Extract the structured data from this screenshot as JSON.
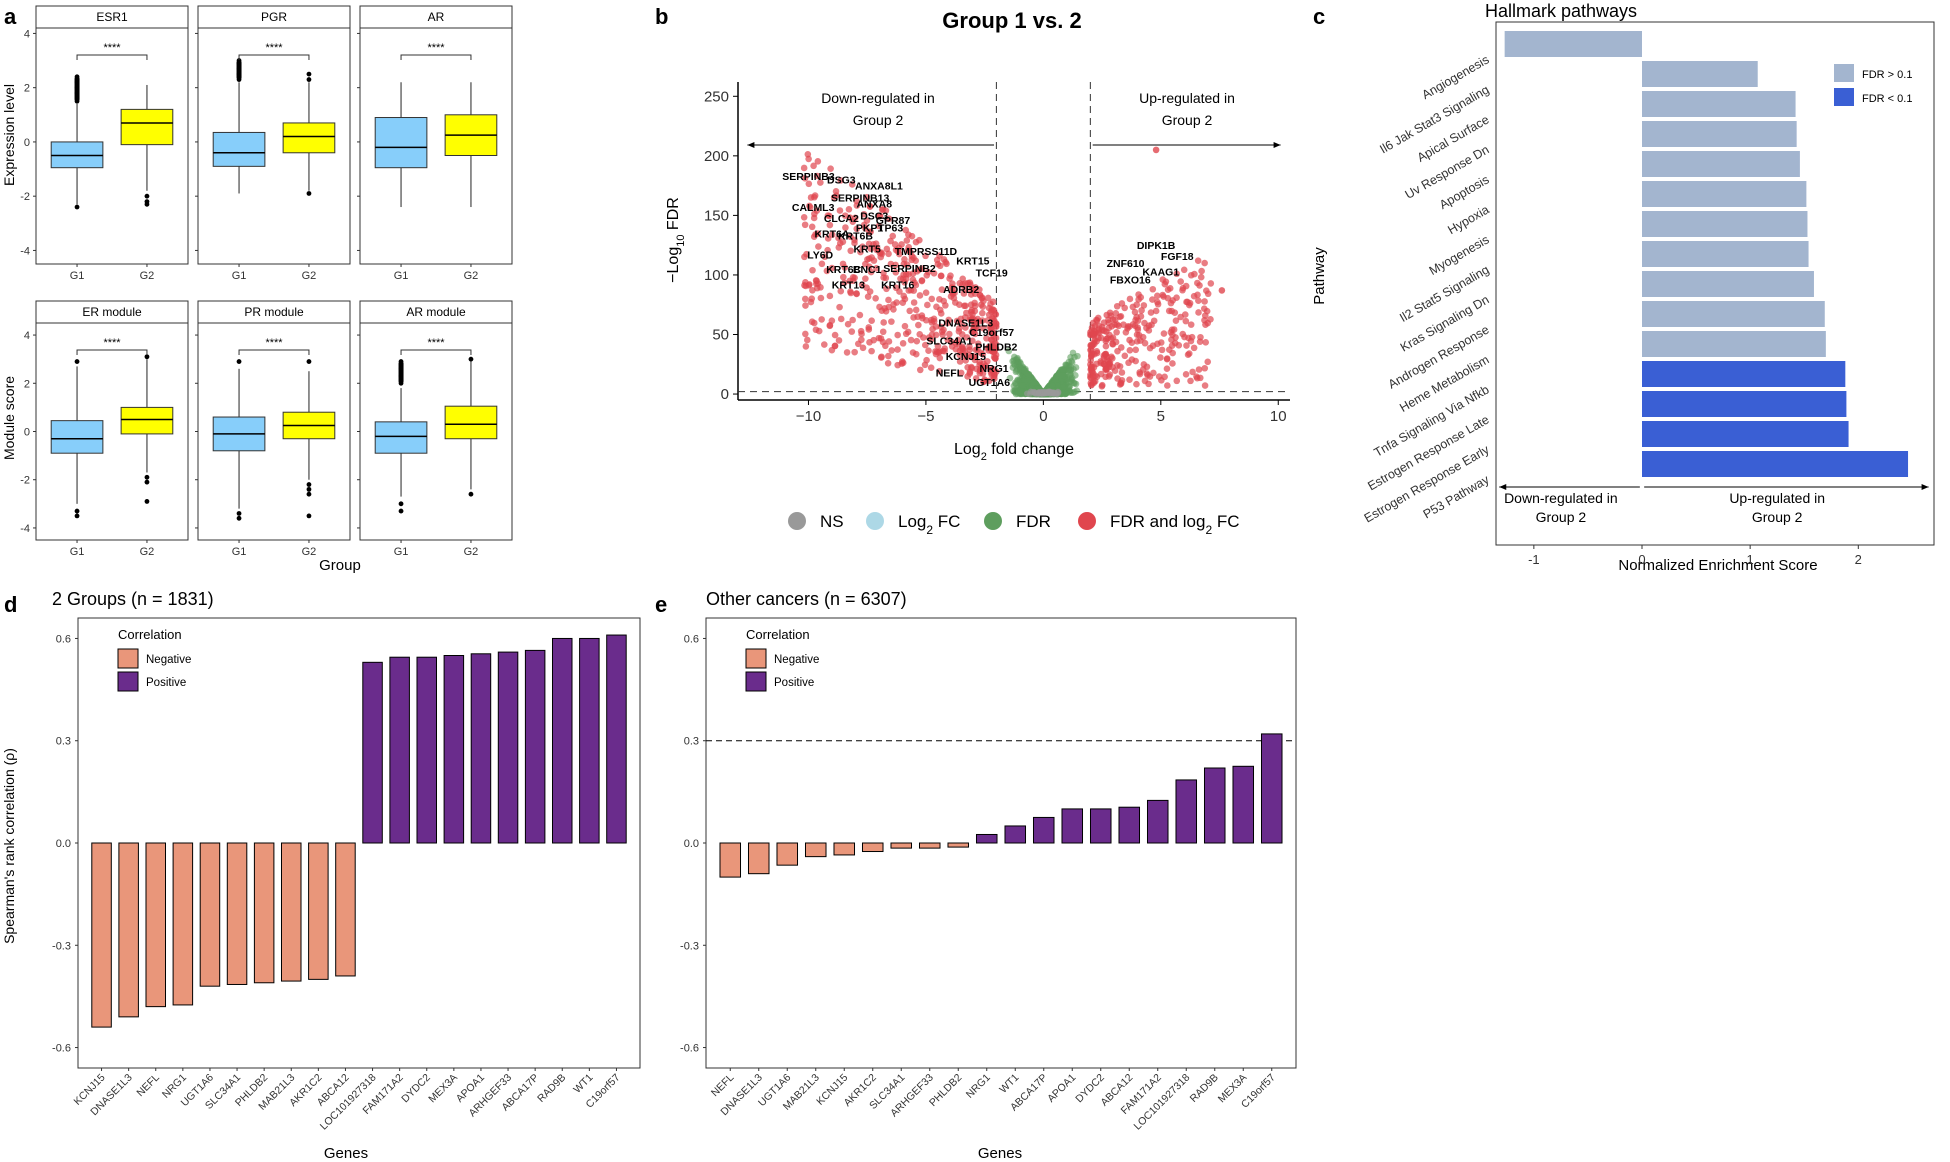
{
  "panel_labels": {
    "a": "a",
    "b": "b",
    "c": "c",
    "d": "d",
    "e": "e"
  },
  "colors": {
    "g1": "#87CEFA",
    "g2": "#FFFF00",
    "ns": "#999999",
    "log2fc": "#ADD8E6",
    "fdr": "#5E9E5E",
    "both": "#E0464E",
    "fdr_high": "#A3B5CF",
    "fdr_low": "#3A5FD4",
    "negative": "#E9967A",
    "positive": "#6A2C8C"
  },
  "panel_a": {
    "xlabel": "Group",
    "ylabel_top": "Expression level",
    "ylabel_bottom": "Module score",
    "sig": "****",
    "group_labels": [
      "G1",
      "G2"
    ],
    "top_ylim": [
      -4.5,
      4.2
    ],
    "top_ticks": [
      -4,
      -2,
      0,
      2,
      4
    ],
    "bottom_ylim": [
      -4.5,
      4.5
    ],
    "bottom_ticks": [
      -4,
      -2,
      0,
      2,
      4
    ],
    "top": [
      {
        "title": "ESR1",
        "g1": {
          "lo": -2.3,
          "q1": -0.95,
          "med": -0.5,
          "q3": 0.0,
          "hi": 1.4,
          "out": [
            -2.4,
            1.5,
            1.8,
            2.0,
            2.2,
            2.4
          ]
        },
        "g2": {
          "lo": -1.8,
          "q1": -0.1,
          "med": 0.7,
          "q3": 1.2,
          "hi": 2.1,
          "out": [
            -2.0,
            -2.2,
            -2.3
          ]
        }
      },
      {
        "title": "PGR",
        "g1": {
          "lo": -1.9,
          "q1": -0.9,
          "med": -0.4,
          "q3": 0.35,
          "hi": 2.2,
          "out": [
            2.3,
            2.5,
            2.7,
            2.9,
            3.0
          ]
        },
        "g2": {
          "lo": -1.8,
          "q1": -0.4,
          "med": 0.2,
          "q3": 0.7,
          "hi": 2.2,
          "out": [
            -1.9,
            2.3,
            2.5
          ]
        }
      },
      {
        "title": "AR",
        "g1": {
          "lo": -2.4,
          "q1": -0.95,
          "med": -0.2,
          "q3": 0.9,
          "hi": 2.2,
          "out": []
        },
        "g2": {
          "lo": -2.4,
          "q1": -0.5,
          "med": 0.25,
          "q3": 1.0,
          "hi": 2.2,
          "out": []
        }
      }
    ],
    "bottom": [
      {
        "title": "ER module",
        "g1": {
          "lo": -3.0,
          "q1": -0.9,
          "med": -0.3,
          "q3": 0.45,
          "hi": 2.7,
          "out": [
            -3.3,
            -3.5,
            2.9
          ]
        },
        "g2": {
          "lo": -1.7,
          "q1": -0.1,
          "med": 0.5,
          "q3": 1.0,
          "hi": 3.0,
          "out": [
            -1.9,
            -2.1,
            -2.9,
            3.1
          ]
        }
      },
      {
        "title": "PR module",
        "g1": {
          "lo": -3.2,
          "q1": -0.8,
          "med": -0.1,
          "q3": 0.6,
          "hi": 2.6,
          "out": [
            -3.4,
            -3.6,
            2.9
          ]
        },
        "g2": {
          "lo": -2.0,
          "q1": -0.3,
          "med": 0.25,
          "q3": 0.8,
          "hi": 2.5,
          "out": [
            -2.2,
            -2.4,
            -2.6,
            -3.5,
            2.9
          ]
        }
      },
      {
        "title": "AR module",
        "g1": {
          "lo": -2.7,
          "q1": -0.9,
          "med": -0.2,
          "q3": 0.4,
          "hi": 1.8,
          "out": [
            -3.0,
            -3.3,
            2.0,
            2.3,
            2.6,
            2.9
          ]
        },
        "g2": {
          "lo": -2.4,
          "q1": -0.3,
          "med": 0.3,
          "q3": 1.05,
          "hi": 2.9,
          "out": [
            -2.6,
            3.0
          ]
        }
      }
    ]
  },
  "chart_data": [
    {
      "type": "scatter",
      "title": "Group 1 vs. 2",
      "xlabel": "Log2 fold change",
      "ylabel": "-Log10 FDR",
      "xlim": [
        -13,
        10.5
      ],
      "ylim": [
        -5,
        262
      ],
      "xticks": [
        -10,
        -5,
        0,
        5,
        10
      ],
      "yticks": [
        0,
        50,
        100,
        150,
        200,
        250
      ],
      "thresholds": {
        "fc": [
          -2,
          2
        ],
        "fdr": 2
      },
      "region_labels": {
        "down_l1": "Down-regulated in",
        "down_l2": "Group 2",
        "up_l1": "Up-regulated in",
        "up_l2": "Group 2"
      },
      "legend": [
        "NS",
        "Log2 FC",
        "FDR",
        "FDR and log2 FC"
      ],
      "genes": [
        {
          "name": "SERPINB3",
          "x": -10.0,
          "y": 183
        },
        {
          "name": "DSG3",
          "x": -8.6,
          "y": 180
        },
        {
          "name": "ANXA8L1",
          "x": -7.0,
          "y": 175
        },
        {
          "name": "SERPINB13",
          "x": -7.8,
          "y": 165
        },
        {
          "name": "ANXA8",
          "x": -7.2,
          "y": 160
        },
        {
          "name": "CALML3",
          "x": -9.8,
          "y": 157
        },
        {
          "name": "DSC3",
          "x": -7.2,
          "y": 150
        },
        {
          "name": "CLCA2",
          "x": -8.6,
          "y": 148
        },
        {
          "name": "GPR87",
          "x": -6.4,
          "y": 146
        },
        {
          "name": "KRT6A",
          "x": -9.0,
          "y": 135
        },
        {
          "name": "PKP1",
          "x": -7.4,
          "y": 140
        },
        {
          "name": "TP63",
          "x": -6.5,
          "y": 140
        },
        {
          "name": "KRT6B",
          "x": -8.0,
          "y": 133
        },
        {
          "name": "KRT5",
          "x": -7.5,
          "y": 122
        },
        {
          "name": "TMPRSS11D",
          "x": -5.0,
          "y": 120
        },
        {
          "name": "LY6D",
          "x": -9.5,
          "y": 117
        },
        {
          "name": "KRT15",
          "x": -3.0,
          "y": 112
        },
        {
          "name": "KRT6C",
          "x": -8.5,
          "y": 105
        },
        {
          "name": "BNC1",
          "x": -7.5,
          "y": 105
        },
        {
          "name": "SERPINB2",
          "x": -5.7,
          "y": 106
        },
        {
          "name": "TCF19",
          "x": -2.2,
          "y": 102
        },
        {
          "name": "KRT13",
          "x": -8.3,
          "y": 92
        },
        {
          "name": "KRT16",
          "x": -6.2,
          "y": 92
        },
        {
          "name": "ADRB2",
          "x": -3.5,
          "y": 88
        },
        {
          "name": "DNASE1L3",
          "x": -3.3,
          "y": 60
        },
        {
          "name": "C19orf57",
          "x": -2.2,
          "y": 52
        },
        {
          "name": "SLC34A1",
          "x": -4.0,
          "y": 45
        },
        {
          "name": "PHLDB2",
          "x": -2.0,
          "y": 40
        },
        {
          "name": "KCNJ15",
          "x": -3.3,
          "y": 32
        },
        {
          "name": "NRG1",
          "x": -2.1,
          "y": 22
        },
        {
          "name": "NEFL",
          "x": -4.0,
          "y": 18
        },
        {
          "name": "UGT1A6",
          "x": -2.3,
          "y": 10
        },
        {
          "name": "DIPK1B",
          "x": 4.8,
          "y": 125
        },
        {
          "name": "FGF18",
          "x": 5.7,
          "y": 116
        },
        {
          "name": "ZNF610",
          "x": 3.5,
          "y": 110
        },
        {
          "name": "KAAG1",
          "x": 5.0,
          "y": 103
        },
        {
          "name": "FBXO16",
          "x": 3.7,
          "y": 96
        }
      ]
    },
    {
      "type": "bar",
      "title": "Hallmark pathways",
      "xlabel": "Normalized Enrichment Score",
      "ylabel": "Pathway",
      "xlim": [
        -1.35,
        2.7
      ],
      "xticks": [
        -1,
        0,
        1,
        2
      ],
      "categories": [
        "Angiogenesis",
        "Il6 Jak Stat3 Signaling",
        "Apical Surface",
        "Uv Response Dn",
        "Apoptosis",
        "Hypoxia",
        "Myogenesis",
        "Il2 Stat5 Signaling",
        "Kras Signaling Dn",
        "Androgen Response",
        "Heme Metabolism",
        "Tnfa Signaling Via Nfkb",
        "Estrogen Response Late",
        "Estrogen Response Early",
        "P53 Pathway"
      ],
      "values": [
        -1.27,
        1.07,
        1.42,
        1.43,
        1.46,
        1.52,
        1.53,
        1.54,
        1.59,
        1.69,
        1.7,
        1.88,
        1.89,
        1.91,
        2.46
      ],
      "fdr_group": [
        "high",
        "high",
        "high",
        "high",
        "high",
        "high",
        "high",
        "high",
        "high",
        "high",
        "high",
        "low",
        "low",
        "low",
        "low"
      ],
      "legend": [
        "FDR > 0.1",
        "FDR < 0.1"
      ],
      "region_labels": {
        "down_l1": "Down-regulated in",
        "down_l2": "Group 2",
        "up_l1": "Up-regulated in",
        "up_l2": "Group 2"
      }
    },
    {
      "type": "bar",
      "title": "2 Groups (n = 1831)",
      "xlabel": "Genes",
      "ylabel": "Spearman's rank correlation (ρ)",
      "ylim": [
        -0.66,
        0.66
      ],
      "yticks": [
        -0.6,
        -0.3,
        0.0,
        0.3,
        0.6
      ],
      "legend_title": "Correlation",
      "legend": [
        "Negative",
        "Positive"
      ],
      "categories": [
        "KCNJ15",
        "DNASE1L3",
        "NEFL",
        "NRG1",
        "UGT1A6",
        "SLC34A1",
        "PHLDB2",
        "MAB21L3",
        "AKR1C2",
        "ABCA12",
        "LOC101927318",
        "FAM171A2",
        "DYDC2",
        "MEX3A",
        "APOA1",
        "ARHGEF33",
        "ABCA17P",
        "RAD9B",
        "WT1",
        "C19orf57"
      ],
      "values": [
        -0.54,
        -0.51,
        -0.48,
        -0.475,
        -0.42,
        -0.415,
        -0.41,
        -0.405,
        -0.4,
        -0.39,
        0.53,
        0.545,
        0.545,
        0.55,
        0.555,
        0.56,
        0.565,
        0.6,
        0.6,
        0.61
      ]
    },
    {
      "type": "bar",
      "title": "Other cancers (n = 6307)",
      "xlabel": "Genes",
      "ylabel": "",
      "ylim": [
        -0.66,
        0.66
      ],
      "yticks": [
        -0.6,
        -0.3,
        0.0,
        0.3,
        0.6
      ],
      "ref_line": 0.3,
      "legend_title": "Correlation",
      "legend": [
        "Negative",
        "Positive"
      ],
      "categories": [
        "NEFL",
        "DNASE1L3",
        "UGT1A6",
        "MAB21L3",
        "KCNJ15",
        "AKR1C2",
        "SLC34A1",
        "ARHGEF33",
        "PHLDB2",
        "NRG1",
        "WT1",
        "ABCA17P",
        "APOA1",
        "DYDC2",
        "ABCA12",
        "FAM171A2",
        "LOC101927318",
        "RAD9B",
        "MEX3A",
        "C19orf57"
      ],
      "values": [
        -0.1,
        -0.09,
        -0.065,
        -0.04,
        -0.035,
        -0.025,
        -0.015,
        -0.015,
        -0.012,
        0.025,
        0.05,
        0.075,
        0.1,
        0.1,
        0.105,
        0.125,
        0.185,
        0.22,
        0.225,
        0.32
      ]
    }
  ]
}
